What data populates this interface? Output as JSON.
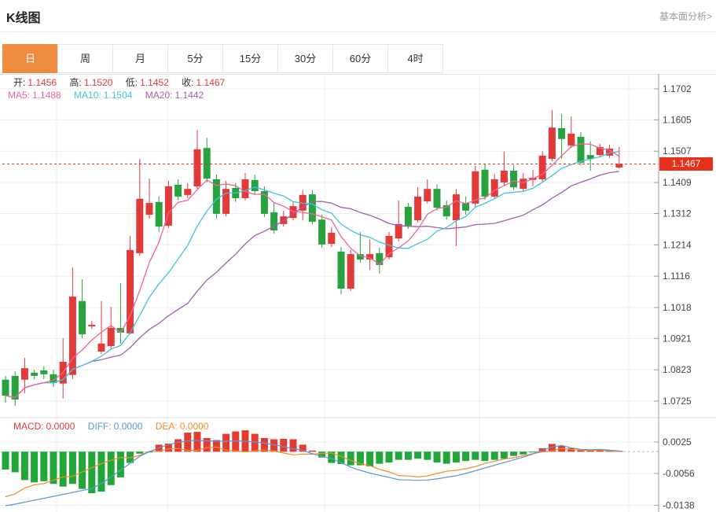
{
  "header": {
    "title": "K线图",
    "link_label": "基本面分析>"
  },
  "tabs": {
    "items": [
      {
        "label": "日",
        "active": true
      },
      {
        "label": "周",
        "active": false
      },
      {
        "label": "月",
        "active": false
      },
      {
        "label": "5分",
        "active": false
      },
      {
        "label": "15分",
        "active": false
      },
      {
        "label": "30分",
        "active": false
      },
      {
        "label": "60分",
        "active": false
      },
      {
        "label": "4时",
        "active": false
      }
    ]
  },
  "ohlc_legend": {
    "open_label": "开:",
    "open_value": "1.1456",
    "high_label": "高:",
    "high_value": "1.1520",
    "low_label": "低:",
    "low_value": "1.1452",
    "close_label": "收:",
    "close_value": "1.1467"
  },
  "ma_legend": {
    "ma5_label": "MA5:",
    "ma5_value": "1.1488",
    "ma10_label": "MA10:",
    "ma10_value": "1.1504",
    "ma20_label": "MA20:",
    "ma20_value": "1.1442"
  },
  "macd_legend": {
    "macd_label": "MACD:",
    "macd_value": "0.0000",
    "diff_label": "DIFF:",
    "diff_value": "0.0000",
    "dea_label": "DEA:",
    "dea_value": "0.0000"
  },
  "price_tag": {
    "value": "1.1467"
  },
  "colors": {
    "up_red": "#e23939",
    "down_green": "#28a23e",
    "ma5": "#ee6596",
    "ma10": "#3cc5da",
    "ma20": "#a45cb4",
    "diff_blue": "#5a96d8",
    "dea_orange": "#ef8f24",
    "macd_up": "#e43b30",
    "macd_down": "#21a738",
    "price_line": "#e8311c",
    "price_tag_bg": "#e8311c",
    "tab_active_bg": "#ee8b3e",
    "grid": "#ededed",
    "axis": "#9a9a9a",
    "axis_text": "#444444"
  },
  "chart_data": {
    "type": "candlestick_with_macd",
    "title": "K线图",
    "panes": [
      "kline",
      "macd"
    ],
    "legend_position": "top-left",
    "grid": true,
    "y_axis_ticks": [
      1.1702,
      1.1605,
      1.1507,
      1.1409,
      1.1312,
      1.1214,
      1.1116,
      1.1018,
      1.0921,
      1.0823,
      1.0725
    ],
    "macd_axis_ticks": [
      0.0025,
      -0.0056,
      -0.0138
    ],
    "last_price": 1.1467,
    "ma_periods": [
      5,
      10,
      20
    ],
    "candles_ohlc": [
      [
        1.0792,
        1.0804,
        1.072,
        1.0742
      ],
      [
        1.0804,
        1.0818,
        1.071,
        1.073
      ],
      [
        1.0792,
        1.086,
        1.075,
        1.0828
      ],
      [
        1.0814,
        1.0823,
        1.0794,
        1.0804
      ],
      [
        1.0821,
        1.0834,
        1.0794,
        1.0809
      ],
      [
        1.0809,
        1.0823,
        1.0769,
        1.0782
      ],
      [
        1.078,
        1.0922,
        1.0733,
        1.0848
      ],
      [
        1.0807,
        1.1143,
        1.0794,
        1.1052
      ],
      [
        1.1038,
        1.1106,
        1.0922,
        1.0934
      ],
      [
        1.0959,
        1.0976,
        1.0951,
        1.0964
      ],
      [
        1.088,
        1.1038,
        1.0873,
        1.0905
      ],
      [
        1.0897,
        1.102,
        1.0887,
        1.0954
      ],
      [
        1.0954,
        1.1094,
        1.0905,
        1.0939
      ],
      [
        1.0937,
        1.1242,
        1.0934,
        1.1198
      ],
      [
        1.1188,
        1.1483,
        1.118,
        1.1358
      ],
      [
        1.1308,
        1.1421,
        1.1296,
        1.1345
      ],
      [
        1.1348,
        1.1365,
        1.1254,
        1.1271
      ],
      [
        1.1274,
        1.1414,
        1.1266,
        1.1397
      ],
      [
        1.1402,
        1.1419,
        1.1353,
        1.1365
      ],
      [
        1.137,
        1.1407,
        1.136,
        1.1389
      ],
      [
        1.1397,
        1.1574,
        1.1389,
        1.1513
      ],
      [
        1.1517,
        1.1549,
        1.1409,
        1.1421
      ],
      [
        1.1419,
        1.1434,
        1.1296,
        1.1311
      ],
      [
        1.1311,
        1.1414,
        1.1303,
        1.1389
      ],
      [
        1.1392,
        1.1407,
        1.1348,
        1.136
      ],
      [
        1.136,
        1.1439,
        1.1353,
        1.1419
      ],
      [
        1.1417,
        1.1434,
        1.137,
        1.1382
      ],
      [
        1.1382,
        1.1397,
        1.1301,
        1.1311
      ],
      [
        1.1316,
        1.1345,
        1.1249,
        1.1259
      ],
      [
        1.1279,
        1.1321,
        1.1271,
        1.1303
      ],
      [
        1.1298,
        1.135,
        1.1291,
        1.1335
      ],
      [
        1.1321,
        1.1385,
        1.1291,
        1.137
      ],
      [
        1.1372,
        1.1385,
        1.1279,
        1.1286
      ],
      [
        1.1293,
        1.1308,
        1.1205,
        1.1215
      ],
      [
        1.1217,
        1.1269,
        1.1207,
        1.1252
      ],
      [
        1.1193,
        1.1207,
        1.106,
        1.1077
      ],
      [
        1.1077,
        1.1198,
        1.107,
        1.1185
      ],
      [
        1.1185,
        1.1254,
        1.1158,
        1.1168
      ],
      [
        1.1168,
        1.123,
        1.1136,
        1.1185
      ],
      [
        1.1188,
        1.1205,
        1.1124,
        1.1151
      ],
      [
        1.1175,
        1.1254,
        1.1168,
        1.1242
      ],
      [
        1.1234,
        1.1353,
        1.1225,
        1.1279
      ],
      [
        1.1333,
        1.1345,
        1.1264,
        1.1274
      ],
      [
        1.1291,
        1.1394,
        1.1284,
        1.1365
      ],
      [
        1.135,
        1.1419,
        1.1343,
        1.1389
      ],
      [
        1.1389,
        1.1404,
        1.1321,
        1.133
      ],
      [
        1.1338,
        1.1353,
        1.1293,
        1.1303
      ],
      [
        1.1291,
        1.1389,
        1.121,
        1.1372
      ],
      [
        1.1345,
        1.1365,
        1.1308,
        1.1321
      ],
      [
        1.1343,
        1.1461,
        1.1333,
        1.1444
      ],
      [
        1.1449,
        1.1466,
        1.1355,
        1.1365
      ],
      [
        1.1365,
        1.1436,
        1.1358,
        1.1419
      ],
      [
        1.1409,
        1.1505,
        1.1399,
        1.1446
      ],
      [
        1.1446,
        1.1463,
        1.1385,
        1.1394
      ],
      [
        1.1389,
        1.1439,
        1.1382,
        1.1421
      ],
      [
        1.1417,
        1.1448,
        1.1397,
        1.1424
      ],
      [
        1.1419,
        1.1507,
        1.1412,
        1.1493
      ],
      [
        1.1483,
        1.1636,
        1.1476,
        1.1581
      ],
      [
        1.1579,
        1.1623,
        1.1483,
        1.1545
      ],
      [
        1.1525,
        1.1616,
        1.1517,
        1.1562
      ],
      [
        1.1552,
        1.1567,
        1.1463,
        1.1471
      ],
      [
        1.1495,
        1.1537,
        1.1446,
        1.1483
      ],
      [
        1.1495,
        1.153,
        1.1488,
        1.152
      ],
      [
        1.1493,
        1.1527,
        1.1486,
        1.1515
      ],
      [
        1.1456,
        1.152,
        1.1452,
        1.1467
      ]
    ],
    "macd_hist": [
      -0.0046,
      -0.0053,
      -0.0073,
      -0.0079,
      -0.0076,
      -0.0083,
      -0.009,
      -0.0083,
      -0.0096,
      -0.0107,
      -0.0103,
      -0.0086,
      -0.0066,
      -0.0029,
      -0.0005,
      -0.0002,
      0.0018,
      0.0021,
      0.0032,
      0.0049,
      0.0051,
      0.0035,
      0.003,
      0.0046,
      0.0052,
      0.0055,
      0.0046,
      0.0035,
      0.0032,
      0.0033,
      0.0032,
      0.0018,
      0.0003,
      -0.0015,
      -0.0029,
      -0.0032,
      -0.0035,
      -0.0035,
      -0.0038,
      -0.0031,
      -0.0028,
      -0.0021,
      -0.0021,
      -0.0018,
      -0.0021,
      -0.0028,
      -0.0031,
      -0.0028,
      -0.0024,
      -0.0021,
      -0.0024,
      -0.0021,
      -0.0018,
      -0.0011,
      -0.0007,
      -0.0002,
      0.0009,
      0.002,
      0.0015,
      0.0009,
      0.0004,
      0.0003,
      0.0004,
      0.0003,
      0.0002
    ],
    "macd_diff": [
      -0.0139,
      -0.0135,
      -0.013,
      -0.0125,
      -0.012,
      -0.0115,
      -0.011,
      -0.0105,
      -0.01,
      -0.0095,
      -0.0082,
      -0.0065,
      -0.0048,
      -0.003,
      -0.0012,
      0.0,
      0.001,
      0.0018,
      0.0024,
      0.0028,
      0.0029,
      0.0028,
      0.0027,
      0.0027,
      0.0028,
      0.0027,
      0.0025,
      0.0022,
      0.0018,
      0.0013,
      0.0008,
      0.0003,
      -0.0005,
      -0.0012,
      -0.0018,
      -0.0028,
      -0.004,
      -0.0048,
      -0.0055,
      -0.0061,
      -0.0066,
      -0.0072,
      -0.0073,
      -0.0074,
      -0.0073,
      -0.007,
      -0.0066,
      -0.0062,
      -0.0056,
      -0.0049,
      -0.0042,
      -0.0035,
      -0.0028,
      -0.0021,
      -0.0014,
      -0.0006,
      0.0004,
      0.0012,
      0.0016,
      0.001,
      0.0006,
      0.0005,
      0.0006,
      0.0004,
      0.0002
    ]
  }
}
